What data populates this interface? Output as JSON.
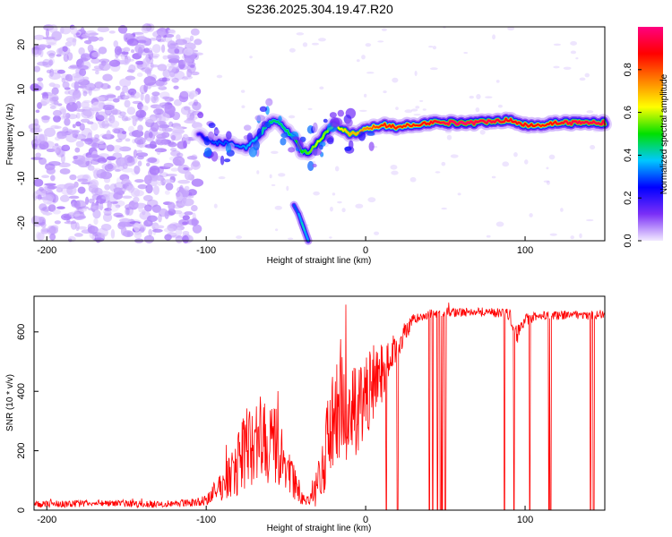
{
  "figure_title": "S236.2025.304.19.47.R20",
  "chart_data": [
    {
      "type": "heatmap",
      "title": "S236.2025.304.19.47.R20",
      "xlabel": "Height of straight line (km)",
      "ylabel": "Frequency (Hz)",
      "xlim": [
        -208,
        150
      ],
      "ylim": [
        -24,
        24
      ],
      "xticks": [
        -200,
        -100,
        0,
        100
      ],
      "yticks": [
        -20,
        -10,
        0,
        10,
        20
      ],
      "colorbar": {
        "label": "Normalized spectral amplitude",
        "range": [
          0,
          1
        ],
        "ticks": [
          0.0,
          0.2,
          0.4,
          0.6,
          0.8
        ],
        "colors": [
          "#f2eaff",
          "#7b2ff7",
          "#0000ff",
          "#00c8ff",
          "#00e000",
          "#ffff00",
          "#ff8000",
          "#ff0000",
          "#ff0080"
        ]
      },
      "noise_region": {
        "x": [
          -208,
          -105
        ],
        "y": [
          -24,
          24
        ],
        "amplitude": 0.05
      },
      "ridge": {
        "x": [
          -105,
          -95,
          -85,
          -75,
          -68,
          -62,
          -56,
          -50,
          -45,
          -40,
          -35,
          -30,
          -25,
          -20,
          -15,
          -10,
          -5,
          0,
          5,
          10,
          20,
          30,
          40,
          50,
          60,
          70,
          80,
          90,
          100,
          110,
          120,
          130,
          140,
          150
        ],
        "freq": [
          0,
          -2,
          -2,
          -3,
          -1,
          2,
          3,
          1,
          -1,
          -4,
          -4,
          -2,
          0,
          2,
          1,
          0,
          0,
          1,
          1.5,
          2,
          1.5,
          2,
          2.5,
          2.5,
          2.5,
          2.5,
          3,
          3,
          2,
          2,
          2.5,
          2.5,
          2.5,
          2.5
        ],
        "amplitude": [
          0.2,
          0.3,
          0.3,
          0.35,
          0.4,
          0.45,
          0.45,
          0.45,
          0.5,
          0.5,
          0.55,
          0.6,
          0.55,
          0.6,
          0.65,
          0.7,
          0.7,
          0.75,
          0.8,
          0.85,
          0.85,
          0.85,
          0.9,
          0.95,
          1.0,
          0.95,
          0.95,
          0.9,
          0.9,
          0.85,
          0.9,
          0.95,
          0.95,
          0.95
        ]
      },
      "secondary_streak": {
        "x": [
          -45,
          -42,
          -40,
          -38,
          -36
        ],
        "freq": [
          -16,
          -18,
          -20,
          -22,
          -24
        ],
        "amplitude": [
          0.3,
          0.35,
          0.4,
          0.35,
          0.3
        ]
      }
    },
    {
      "type": "line",
      "xlabel": "Height of straight line (km)",
      "ylabel": "SNR (10 * v/v)",
      "xlim": [
        -208,
        150
      ],
      "ylim": [
        0,
        720
      ],
      "xticks": [
        -200,
        -100,
        0,
        100
      ],
      "yticks": [
        0,
        200,
        400,
        600
      ],
      "line_color": "#ff0000",
      "series": [
        {
          "name": "SNR",
          "x": [
            -208,
            -200,
            -180,
            -160,
            -140,
            -120,
            -100,
            -95,
            -90,
            -85,
            -80,
            -75,
            -70,
            -65,
            -60,
            -55,
            -50,
            -45,
            -40,
            -35,
            -30,
            -25,
            -20,
            -15,
            -10,
            -5,
            0,
            5,
            10,
            15,
            20,
            25,
            30,
            40,
            50,
            60,
            70,
            80,
            90,
            95,
            100,
            110,
            120,
            130,
            140,
            150
          ],
          "y": [
            20,
            20,
            22,
            25,
            20,
            22,
            30,
            60,
            80,
            120,
            160,
            200,
            220,
            250,
            230,
            200,
            160,
            90,
            40,
            30,
            80,
            200,
            300,
            380,
            320,
            300,
            380,
            430,
            460,
            520,
            560,
            600,
            640,
            660,
            665,
            665,
            670,
            665,
            660,
            590,
            640,
            655,
            655,
            660,
            655,
            660
          ],
          "noise": [
            12,
            12,
            12,
            12,
            12,
            12,
            15,
            35,
            50,
            80,
            110,
            140,
            150,
            160,
            150,
            130,
            100,
            60,
            25,
            15,
            70,
            140,
            170,
            220,
            180,
            170,
            140,
            120,
            100,
            60,
            50,
            35,
            20,
            15,
            15,
            15,
            15,
            15,
            20,
            30,
            20,
            15,
            15,
            15,
            15,
            15
          ]
        }
      ],
      "dropouts_x": [
        13,
        20,
        40,
        42,
        45,
        47,
        48,
        50,
        87,
        93,
        103,
        115,
        116,
        141,
        143
      ]
    }
  ]
}
